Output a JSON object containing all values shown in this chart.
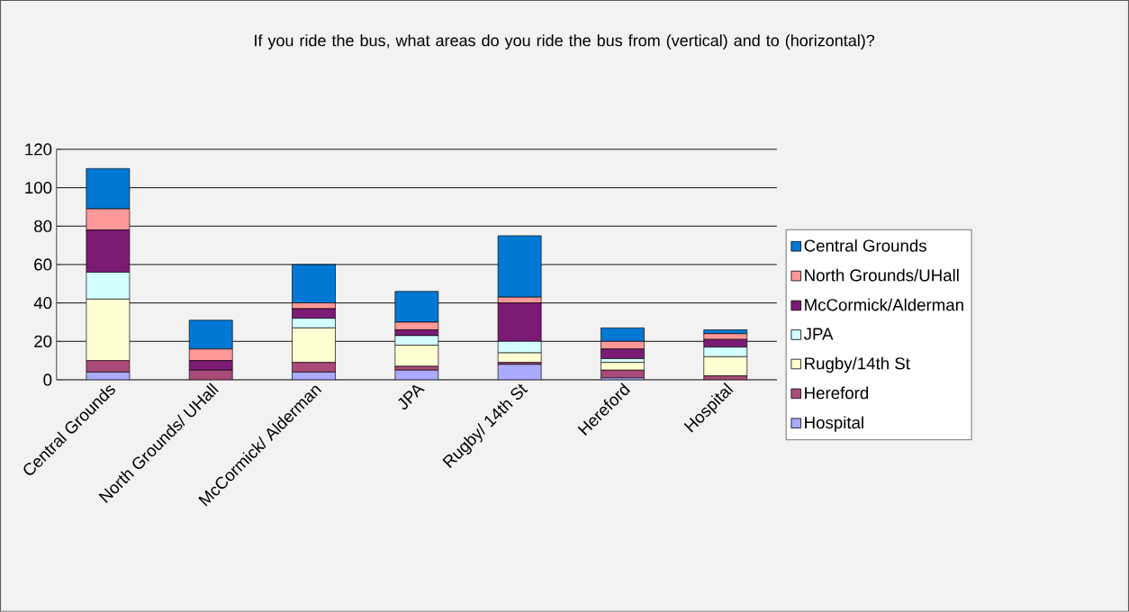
{
  "chart_data": {
    "type": "bar",
    "title": "If you ride the bus, what areas do you ride the bus from (vertical) and to (horizontal)?",
    "categories": [
      "Central Grounds",
      "North Grounds/ UHall",
      "McCormick/ Alderman",
      "JPA",
      "Rugby/ 14th St",
      "Hereford",
      "Hospital"
    ],
    "stacked": true,
    "series": [
      {
        "name": "Hospital",
        "color": "#aaaaff",
        "values": [
          4,
          0,
          4,
          5,
          8,
          1,
          0
        ]
      },
      {
        "name": "Hereford",
        "color": "#aa4a78",
        "values": [
          6,
          5,
          5,
          2,
          1,
          4,
          2
        ]
      },
      {
        "name": "Rugby/14th St",
        "color": "#ffffd4",
        "values": [
          32,
          0,
          18,
          11,
          5,
          4,
          10
        ]
      },
      {
        "name": "JPA",
        "color": "#d4ffff",
        "values": [
          14,
          0,
          5,
          5,
          6,
          2,
          5
        ]
      },
      {
        "name": "McCormick/Alderman",
        "color": "#7b1b74",
        "values": [
          22,
          5,
          5,
          3,
          20,
          5,
          4
        ]
      },
      {
        "name": "North Grounds/UHall",
        "color": "#ff9999",
        "values": [
          11,
          6,
          3,
          4,
          3,
          4,
          3
        ]
      },
      {
        "name": "Central Grounds",
        "color": "#0078d4",
        "values": [
          21,
          15,
          20,
          16,
          32,
          7,
          2
        ]
      }
    ],
    "ylim": [
      0,
      120
    ],
    "yticks": [
      0,
      20,
      40,
      60,
      80,
      100,
      120
    ],
    "grid": "y",
    "legend": "right"
  }
}
